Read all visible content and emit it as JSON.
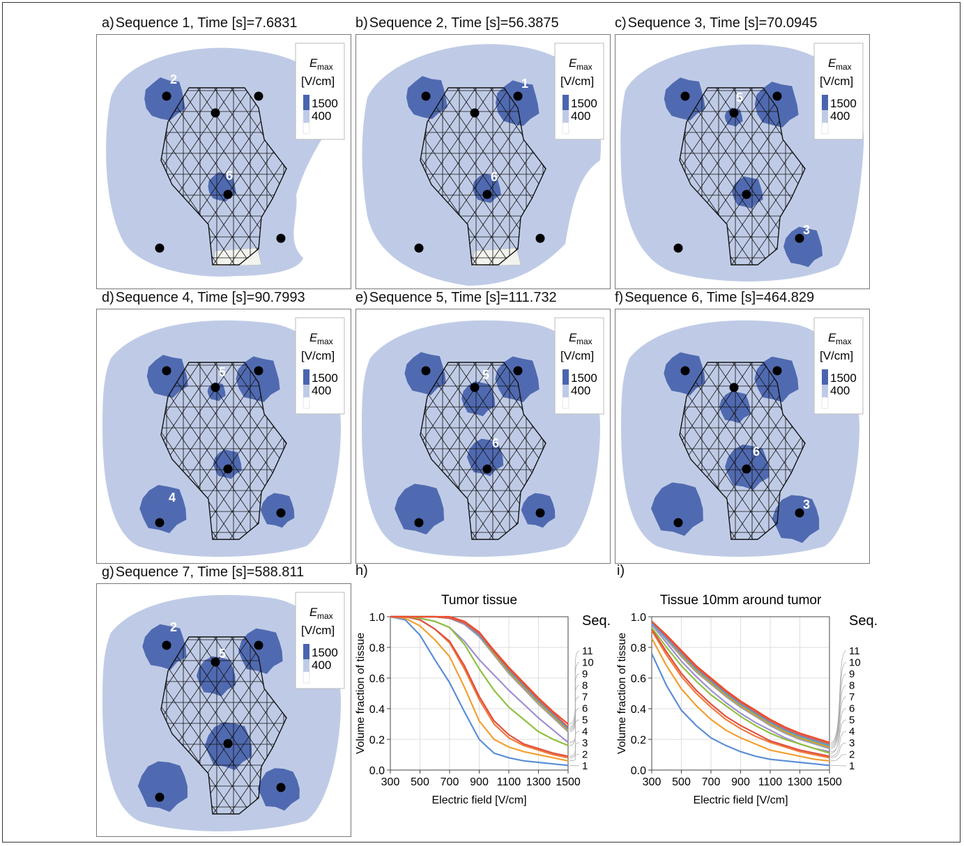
{
  "colors": {
    "field_high": "#4a64ae",
    "field_mid": "#bfcbe6",
    "field_low": "#f3f3ee",
    "mesh": "#111111",
    "electrode": "#000000"
  },
  "legend": {
    "symbol": "E",
    "symbol_sub": "max",
    "unit": "[V/cm]",
    "high": "1500",
    "low": "400"
  },
  "panels": [
    {
      "letter": "a)",
      "title": "Sequence 1, Time [s]=7.6831",
      "labels": [
        "2",
        "6"
      ]
    },
    {
      "letter": "b)",
      "title": "Sequence 2, Time [s]=56.3875",
      "labels": [
        "1",
        "6"
      ]
    },
    {
      "letter": "c)",
      "title": "Sequence 3, Time [s]=70.0945",
      "labels": [
        "5",
        "3"
      ]
    },
    {
      "letter": "d)",
      "title": "Sequence 4, Time [s]=90.7993",
      "labels": [
        "5",
        "4"
      ]
    },
    {
      "letter": "e)",
      "title": "Sequence 5, Time [s]=111.732",
      "labels": [
        "5",
        "6"
      ]
    },
    {
      "letter": "f)",
      "title": "Sequence 6, Time [s]=464.829",
      "labels": [
        "6",
        "3"
      ]
    },
    {
      "letter": "g)",
      "title": "Sequence 7, Time [s]=588.811",
      "labels": [
        "2",
        "5"
      ]
    }
  ],
  "chart_letters": [
    "h)",
    "i)"
  ],
  "chart_data": [
    {
      "type": "line",
      "title": "Tumor tissue",
      "xlabel": "Electric field [V/cm]",
      "ylabel": "Volume fraction of tissue",
      "xlim": [
        300,
        1500
      ],
      "ylim": [
        0,
        1
      ],
      "xticks": [
        "300",
        "500",
        "700",
        "900",
        "1100",
        "1300",
        "1500"
      ],
      "yticks": [
        "0.0",
        "0.2",
        "0.4",
        "0.6",
        "0.8",
        "1.0"
      ],
      "legend_title": "Seq.",
      "x": [
        300,
        400,
        500,
        600,
        700,
        800,
        900,
        1000,
        1100,
        1200,
        1300,
        1400,
        1500
      ],
      "series": [
        {
          "name": "1",
          "color": "#5b8ed6",
          "values": [
            1.0,
            0.98,
            0.88,
            0.72,
            0.57,
            0.38,
            0.2,
            0.11,
            0.08,
            0.06,
            0.05,
            0.04,
            0.03
          ]
        },
        {
          "name": "2",
          "color": "#f0a030",
          "values": [
            1.0,
            0.99,
            0.94,
            0.85,
            0.74,
            0.54,
            0.32,
            0.2,
            0.15,
            0.12,
            0.1,
            0.08,
            0.06
          ]
        },
        {
          "name": "3",
          "color": "#f07b3a",
          "values": [
            1.0,
            1.0,
            0.98,
            0.92,
            0.83,
            0.66,
            0.46,
            0.3,
            0.21,
            0.16,
            0.13,
            0.1,
            0.08
          ]
        },
        {
          "name": "4",
          "color": "#e05040",
          "values": [
            1.0,
            1.0,
            0.98,
            0.92,
            0.84,
            0.68,
            0.48,
            0.32,
            0.23,
            0.17,
            0.14,
            0.11,
            0.09
          ]
        },
        {
          "name": "5",
          "color": "#9f8fd0",
          "values": [
            1.0,
            1.0,
            0.99,
            0.97,
            0.93,
            0.84,
            0.72,
            0.62,
            0.52,
            0.43,
            0.34,
            0.26,
            0.18
          ]
        },
        {
          "name": "6",
          "color": "#8fc040",
          "values": [
            1.0,
            1.0,
            0.99,
            0.97,
            0.93,
            0.82,
            0.66,
            0.52,
            0.41,
            0.33,
            0.25,
            0.2,
            0.16
          ]
        },
        {
          "name": "7",
          "color": "#9aa0b0",
          "values": [
            1.0,
            1.0,
            1.0,
            1.0,
            0.99,
            0.95,
            0.87,
            0.75,
            0.63,
            0.53,
            0.43,
            0.34,
            0.25
          ]
        },
        {
          "name": "8",
          "color": "#d4a020",
          "values": [
            1.0,
            1.0,
            1.0,
            1.0,
            0.99,
            0.96,
            0.88,
            0.76,
            0.64,
            0.54,
            0.44,
            0.35,
            0.26
          ]
        },
        {
          "name": "9",
          "color": "#50a0d0",
          "values": [
            1.0,
            1.0,
            1.0,
            1.0,
            0.99,
            0.96,
            0.88,
            0.77,
            0.65,
            0.55,
            0.45,
            0.36,
            0.27
          ]
        },
        {
          "name": "10",
          "color": "#d06060",
          "values": [
            1.0,
            1.0,
            1.0,
            1.0,
            0.99,
            0.96,
            0.89,
            0.77,
            0.66,
            0.56,
            0.46,
            0.37,
            0.28
          ]
        },
        {
          "name": "11",
          "color": "#ee4d2a",
          "values": [
            1.0,
            1.0,
            1.0,
            1.0,
            1.0,
            0.97,
            0.9,
            0.78,
            0.67,
            0.57,
            0.47,
            0.38,
            0.3
          ]
        }
      ]
    },
    {
      "type": "line",
      "title": "Tissue 10mm around tumor",
      "xlabel": "Electric field [V/cm]",
      "ylabel": "Volume fraction of tissue",
      "xlim": [
        300,
        1500
      ],
      "ylim": [
        0,
        1
      ],
      "xticks": [
        "300",
        "500",
        "700",
        "900",
        "1100",
        "1300",
        "1500"
      ],
      "yticks": [
        "0.0",
        "0.2",
        "0.4",
        "0.6",
        "0.8",
        "1.0"
      ],
      "legend_title": "Seq.",
      "x": [
        300,
        400,
        500,
        600,
        700,
        800,
        900,
        1000,
        1100,
        1200,
        1300,
        1400,
        1500
      ],
      "series": [
        {
          "name": "1",
          "color": "#5b8ed6",
          "values": [
            0.76,
            0.55,
            0.39,
            0.29,
            0.21,
            0.16,
            0.12,
            0.09,
            0.07,
            0.06,
            0.05,
            0.04,
            0.03
          ]
        },
        {
          "name": "2",
          "color": "#f0a030",
          "values": [
            0.86,
            0.68,
            0.53,
            0.42,
            0.33,
            0.26,
            0.21,
            0.17,
            0.13,
            0.11,
            0.09,
            0.07,
            0.06
          ]
        },
        {
          "name": "3",
          "color": "#f07b3a",
          "values": [
            0.91,
            0.75,
            0.61,
            0.5,
            0.41,
            0.33,
            0.27,
            0.22,
            0.18,
            0.15,
            0.12,
            0.1,
            0.08
          ]
        },
        {
          "name": "4",
          "color": "#e05040",
          "values": [
            0.92,
            0.77,
            0.63,
            0.52,
            0.43,
            0.35,
            0.29,
            0.24,
            0.19,
            0.16,
            0.13,
            0.11,
            0.09
          ]
        },
        {
          "name": "5",
          "color": "#9f8fd0",
          "values": [
            0.95,
            0.83,
            0.71,
            0.61,
            0.52,
            0.44,
            0.37,
            0.31,
            0.26,
            0.21,
            0.17,
            0.14,
            0.12
          ]
        },
        {
          "name": "6",
          "color": "#8fc040",
          "values": [
            0.93,
            0.8,
            0.68,
            0.58,
            0.49,
            0.42,
            0.35,
            0.29,
            0.24,
            0.2,
            0.17,
            0.14,
            0.11
          ]
        },
        {
          "name": "7",
          "color": "#9aa0b0",
          "values": [
            0.96,
            0.85,
            0.74,
            0.64,
            0.56,
            0.48,
            0.41,
            0.35,
            0.29,
            0.24,
            0.2,
            0.17,
            0.14
          ]
        },
        {
          "name": "8",
          "color": "#d4a020",
          "values": [
            0.96,
            0.86,
            0.75,
            0.65,
            0.57,
            0.49,
            0.42,
            0.36,
            0.3,
            0.25,
            0.21,
            0.18,
            0.15
          ]
        },
        {
          "name": "9",
          "color": "#50a0d0",
          "values": [
            0.96,
            0.86,
            0.76,
            0.66,
            0.58,
            0.5,
            0.43,
            0.37,
            0.31,
            0.26,
            0.22,
            0.19,
            0.16
          ]
        },
        {
          "name": "10",
          "color": "#d06060",
          "values": [
            0.97,
            0.87,
            0.77,
            0.67,
            0.59,
            0.51,
            0.44,
            0.38,
            0.32,
            0.27,
            0.23,
            0.2,
            0.17
          ]
        },
        {
          "name": "11",
          "color": "#ee4d2a",
          "values": [
            0.97,
            0.88,
            0.78,
            0.68,
            0.6,
            0.52,
            0.45,
            0.39,
            0.33,
            0.28,
            0.24,
            0.21,
            0.18
          ]
        }
      ]
    }
  ]
}
